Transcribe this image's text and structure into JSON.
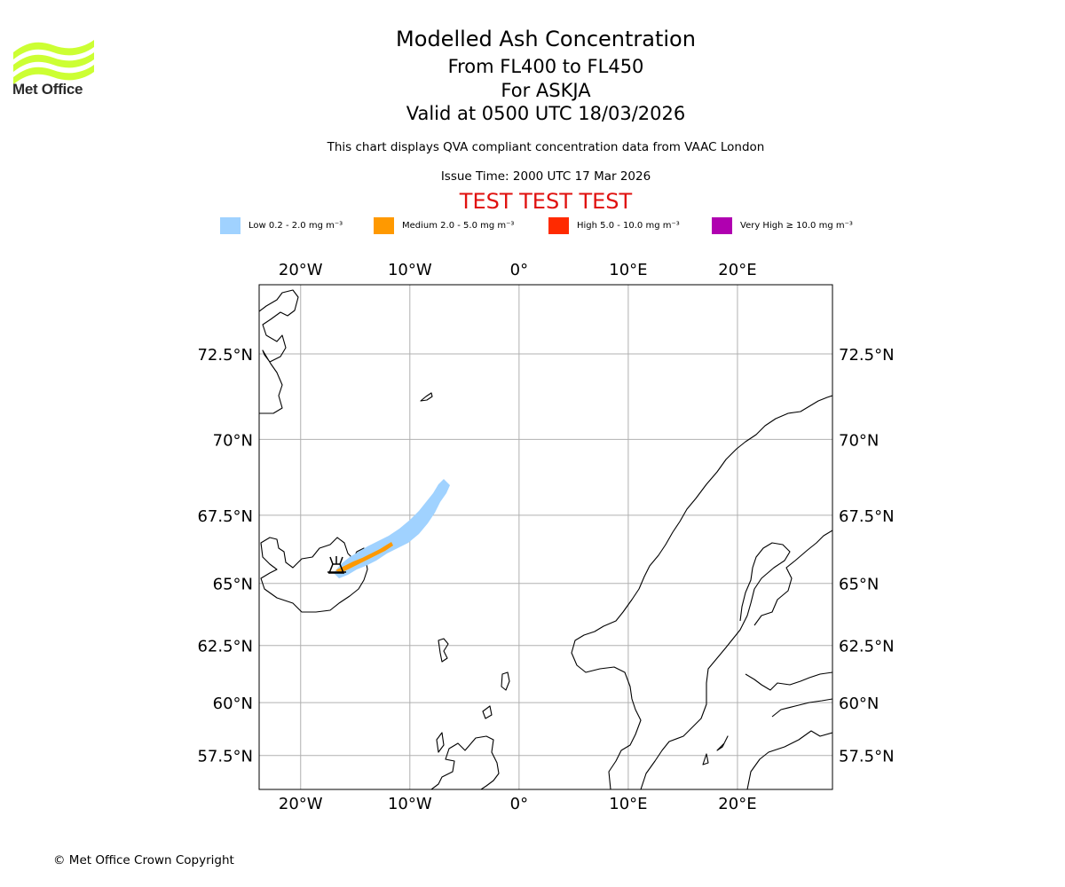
{
  "header": {
    "title": "Modelled Ash Concentration",
    "levels": "From FL400 to FL450",
    "volcano": "For ASKJA",
    "valid": "Valid at 0500 UTC 18/03/2026",
    "description": "This chart displays QVA compliant concentration data from VAAC London",
    "issue_time": "Issue Time: 2000 UTC 17 Mar 2026",
    "test_banner": "TEST TEST TEST"
  },
  "logo": {
    "text": "Met Office",
    "color": "#ccff33"
  },
  "legend": [
    {
      "label": "Low 0.2 - 2.0 mg m⁻³",
      "color": "#a0d2ff"
    },
    {
      "label": "Medium 2.0 - 5.0 mg m⁻³",
      "color": "#ff9900"
    },
    {
      "label": "High 5.0 - 10.0 mg m⁻³",
      "color": "#ff2a00"
    },
    {
      "label": "Very High ≥ 10.0 mg m⁻³",
      "color": "#b000b0"
    }
  ],
  "map": {
    "lon_range": [
      -23.8,
      28.7
    ],
    "lat_range": [
      55.8,
      74.3
    ],
    "grid": true,
    "lon_ticks": [
      {
        "value": -20,
        "label": "20°W"
      },
      {
        "value": -10,
        "label": "10°W"
      },
      {
        "value": 0,
        "label": "0°"
      },
      {
        "value": 10,
        "label": "10°E"
      },
      {
        "value": 20,
        "label": "20°E"
      }
    ],
    "lat_ticks": [
      {
        "value": 72.5,
        "label": "72.5°N"
      },
      {
        "value": 70,
        "label": "70°N"
      },
      {
        "value": 67.5,
        "label": "67.5°N"
      },
      {
        "value": 65,
        "label": "65°N"
      },
      {
        "value": 62.5,
        "label": "62.5°N"
      },
      {
        "value": 60,
        "label": "60°N"
      },
      {
        "value": 57.5,
        "label": "57.5°N"
      }
    ],
    "volcano_location": {
      "lon": -16.7,
      "lat": 65.0,
      "icon": "volcano-icon"
    }
  },
  "copyright": "© Met Office Crown Copyright"
}
